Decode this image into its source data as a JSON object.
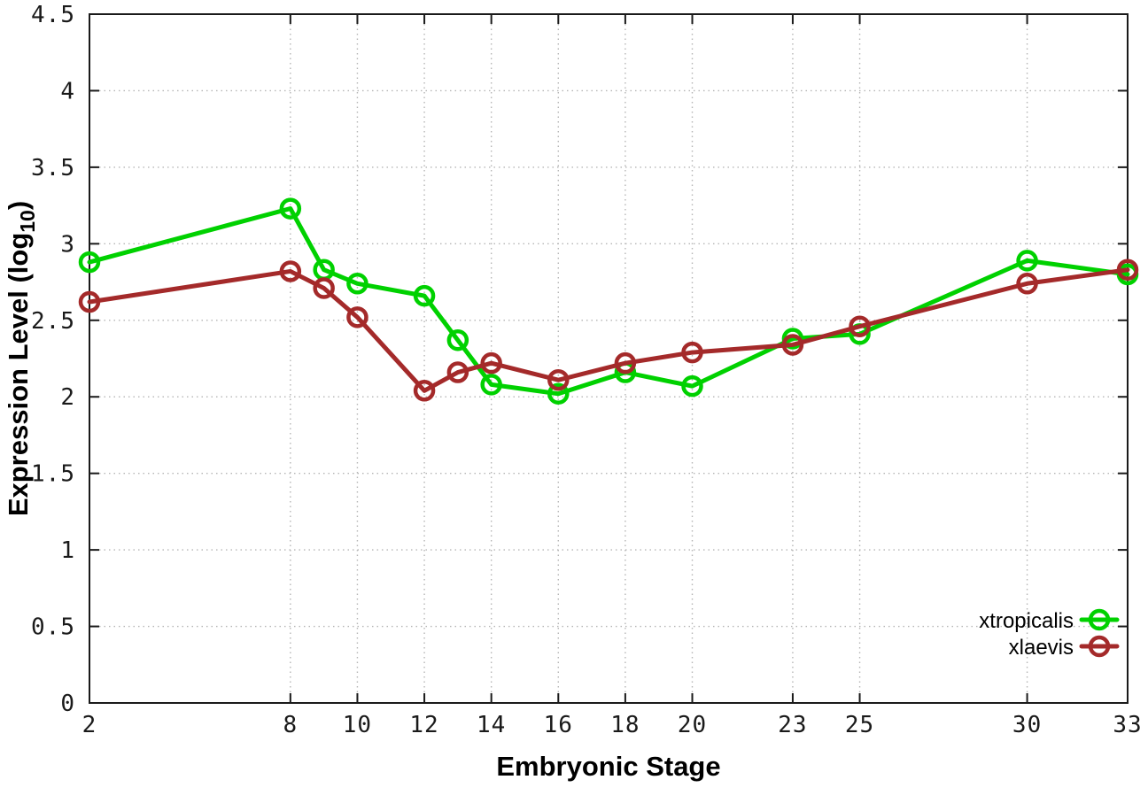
{
  "chart_data": {
    "type": "line",
    "title": "",
    "xlabel": "Embryonic Stage",
    "ylabel": {
      "prefix": "Expression Level (log",
      "sub": "10",
      "suffix": ")"
    },
    "xlim": [
      2,
      33
    ],
    "ylim": [
      0,
      4.5
    ],
    "xticks": [
      2,
      8,
      10,
      12,
      14,
      16,
      18,
      20,
      23,
      25,
      30,
      33
    ],
    "xtick_labels": [
      "2",
      "8",
      "10",
      "12",
      "14",
      "16",
      "18",
      "20",
      "23",
      "25",
      "30",
      "33"
    ],
    "yticks": [
      0,
      0.5,
      1,
      1.5,
      2,
      2.5,
      3,
      3.5,
      4,
      4.5
    ],
    "ytick_labels": [
      "0",
      "0.5",
      "1",
      "1.5",
      "2",
      "2.5",
      "3",
      "3.5",
      "4",
      "4.5"
    ],
    "grid": true,
    "grid_style": "dotted",
    "legend_position": "bottom-right",
    "marker": "open-circle",
    "x": [
      2,
      8,
      9,
      10,
      12,
      13,
      14,
      16,
      18,
      20,
      23,
      25,
      30,
      33
    ],
    "series": [
      {
        "name": "xtropicalis",
        "color": "#00d100",
        "values": [
          2.88,
          3.23,
          2.83,
          2.74,
          2.66,
          2.37,
          2.08,
          2.02,
          2.16,
          2.07,
          2.38,
          2.41,
          2.89,
          2.8
        ]
      },
      {
        "name": "xlaevis",
        "color": "#a42a2a",
        "values": [
          2.62,
          2.82,
          2.71,
          2.52,
          2.04,
          2.16,
          2.22,
          2.11,
          2.22,
          2.29,
          2.34,
          2.46,
          2.74,
          2.83
        ]
      }
    ],
    "colors": {
      "background": "#ffffff",
      "grid": "#b5b5b5",
      "axis": "#1a1a1a",
      "tick_text": "#1a1a1a"
    }
  }
}
